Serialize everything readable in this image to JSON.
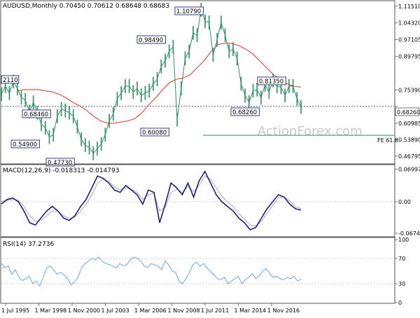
{
  "colors": {
    "candle": "#2f8f63",
    "sma": "#e8413a",
    "macd_line": "#1f1f8a",
    "macd_signal": "#aaaaaa",
    "rsi": "#6aa6e0",
    "callout_border": "#1f2a78",
    "fib": "#2f8f63",
    "current_level": "#444444",
    "panel_border": "#555555",
    "grid": "#999999"
  },
  "chart_data": [
    {
      "type": "line",
      "panel": "price",
      "title": "AUDUSD,Monthly  0.70450 0.70612 0.68648 0.68683",
      "watermark": "ActionForex.com",
      "ylim": [
        0.44,
        1.13
      ],
      "y_ticks": [
        "1.11510",
        "1.04320",
        "0.97105",
        "0.89795",
        "0.75390",
        "0.68260",
        "0.60985",
        "0.53890",
        "0.46795"
      ],
      "y_tick_values": [
        1.1151,
        1.0432,
        0.97105,
        0.89795,
        0.7539,
        0.6826,
        0.60985,
        0.5389,
        0.46795
      ],
      "current_level": "0.68260",
      "current_level_value": 0.6826,
      "fib_label": "FE 61.8",
      "fib_value": 0.5575,
      "series": [
        {
          "values": [
            0.735,
            0.77,
            0.74,
            0.79,
            0.76,
            0.72,
            0.71,
            0.66,
            0.7,
            0.655,
            0.605,
            0.59,
            0.55,
            0.56,
            0.64,
            0.67,
            0.665,
            0.655,
            0.64,
            0.595,
            0.54,
            0.515,
            0.505,
            0.48,
            0.5,
            0.52,
            0.56,
            0.62,
            0.65,
            0.715,
            0.74,
            0.77,
            0.77,
            0.745,
            0.76,
            0.73,
            0.74,
            0.75,
            0.78,
            0.8,
            0.855,
            0.88,
            0.92,
            0.94,
            0.625,
            0.76,
            0.89,
            0.92,
            1.0,
            0.99,
            1.1,
            1.05,
            1.045,
            0.905,
            0.97,
            1.045,
            0.99,
            0.92,
            0.93,
            0.89,
            0.78,
            0.73,
            0.7,
            0.75,
            0.755,
            0.72,
            0.775,
            0.745,
            0.795,
            0.77,
            0.765,
            0.73,
            0.77,
            0.77,
            0.715,
            0.68
          ]
        },
        {
          "values": [
            0.75,
            0.755,
            0.755,
            0.755,
            0.75,
            0.745,
            0.735,
            0.72,
            0.7,
            0.685,
            0.665,
            0.64,
            0.62,
            0.61,
            0.61,
            0.615,
            0.62,
            0.63,
            0.655,
            0.69,
            0.72,
            0.755,
            0.785,
            0.8,
            0.805,
            0.82,
            0.85,
            0.88,
            0.92,
            0.95,
            0.955,
            0.955,
            0.945,
            0.93,
            0.91,
            0.88,
            0.85,
            0.82,
            0.8,
            0.78,
            0.77,
            0.765
          ]
        }
      ],
      "callouts": [
        {
          "label": "1.10790",
          "value": 1.1079
        },
        {
          "label": "0.98490",
          "value": 0.9849
        },
        {
          "label": "0.81350",
          "value": 0.8135
        },
        {
          "label": "0.68260",
          "value": 0.6826
        },
        {
          "label": "0.60080",
          "value": 0.6008
        },
        {
          "label": "0.54900",
          "value": 0.549
        },
        {
          "label": "0.47730",
          "value": 0.4773
        },
        {
          "label": "0.68460",
          "value": 0.6846
        },
        {
          "label": "2110",
          "value": null
        }
      ]
    },
    {
      "type": "line",
      "panel": "macd",
      "title": "MACD(12,26,9) -0.018313 -0.014793",
      "ylim": [
        -0.072,
        0.072
      ],
      "y_ticks": [
        "0.069977",
        "0.00",
        "-0.067448"
      ],
      "y_tick_values": [
        0.069977,
        0.0,
        -0.067448
      ],
      "series": [
        {
          "values": [
            -0.005,
            0.005,
            0.008,
            0.0,
            -0.02,
            -0.045,
            -0.05,
            -0.035,
            -0.02,
            -0.01,
            -0.02,
            -0.035,
            -0.04,
            -0.03,
            -0.01,
            0.005,
            0.03,
            0.055,
            0.05,
            0.04,
            0.025,
            0.02,
            0.035,
            0.025,
            0.015,
            -0.005,
            0.025,
            0.02,
            -0.045,
            -0.005,
            0.04,
            0.03,
            0.015,
            0.04,
            0.01,
            0.045,
            0.065,
            0.04,
            0.015,
            0.0,
            -0.01,
            -0.02,
            -0.035,
            -0.045,
            -0.06,
            -0.055,
            -0.035,
            -0.015,
            0.0,
            0.015,
            0.01,
            -0.005,
            -0.015,
            -0.018
          ]
        },
        {
          "values": [
            0.0,
            0.003,
            0.005,
            0.003,
            -0.01,
            -0.03,
            -0.042,
            -0.04,
            -0.03,
            -0.02,
            -0.02,
            -0.03,
            -0.036,
            -0.033,
            -0.02,
            -0.005,
            0.015,
            0.04,
            0.048,
            0.044,
            0.032,
            0.025,
            0.03,
            0.027,
            0.02,
            0.005,
            0.015,
            0.018,
            -0.02,
            -0.012,
            0.02,
            0.027,
            0.02,
            0.033,
            0.022,
            0.035,
            0.055,
            0.048,
            0.03,
            0.012,
            0.0,
            -0.01,
            -0.025,
            -0.037,
            -0.05,
            -0.052,
            -0.042,
            -0.025,
            -0.008,
            0.008,
            0.01,
            0.002,
            -0.01,
            -0.015
          ]
        }
      ]
    },
    {
      "type": "line",
      "panel": "rsi",
      "title": "RSI(14) 37.2736",
      "ylim": [
        0,
        100
      ],
      "y_ticks": [
        "100",
        "70",
        "30",
        "0"
      ],
      "y_tick_values": [
        100,
        70,
        30,
        0
      ],
      "series": [
        {
          "values": [
            62,
            55,
            58,
            45,
            52,
            40,
            35,
            38,
            42,
            30,
            34,
            26,
            40,
            55,
            58,
            52,
            45,
            48,
            44,
            38,
            28,
            33,
            40,
            55,
            62,
            66,
            70,
            68,
            72,
            65,
            62,
            60,
            58,
            55,
            62,
            58,
            60,
            68,
            72,
            70,
            66,
            58,
            56,
            62,
            60,
            58,
            52,
            66,
            60,
            50,
            48,
            34,
            30,
            38,
            48,
            60,
            64,
            58,
            62,
            55,
            50,
            44,
            38,
            36,
            40,
            30,
            34,
            38,
            42,
            30,
            36,
            40,
            46,
            38,
            42,
            50,
            54,
            46,
            40,
            42,
            38,
            36,
            40,
            38,
            42,
            34,
            37
          ]
        }
      ]
    }
  ],
  "x_axis": {
    "labels": [
      "1 Jul 1995",
      "1 Mar 1998",
      "1 Nov 2000",
      "1 Jul 2003",
      "1 Mar 2006",
      "1 Nov 2008",
      "1 Jul 2011",
      "1 Mar 2014",
      "1 Nov 2016"
    ]
  }
}
